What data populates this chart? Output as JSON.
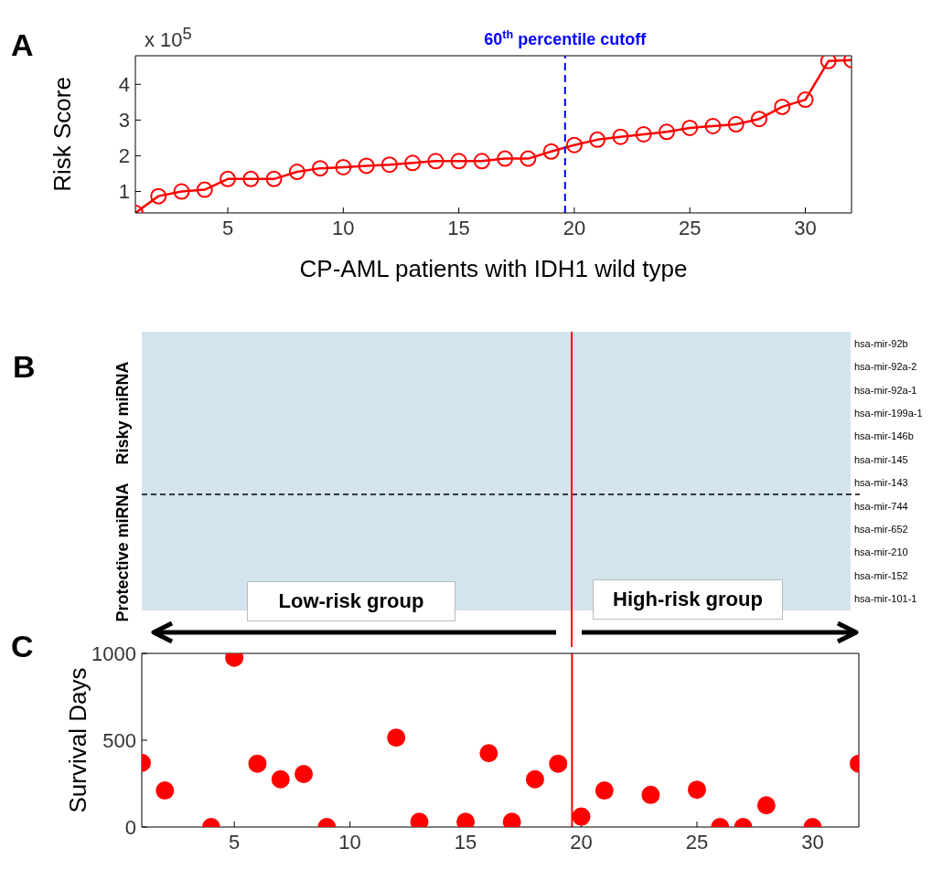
{
  "chart_data": [
    {
      "type": "line",
      "xlabel": "CP-AML patients with IDH1 wild type",
      "ylabel": "Risk Score",
      "annotations": [
        "A",
        "x 10$^{5}$"
      ],
      "x": [
        1,
        2,
        3,
        4,
        5,
        6,
        7,
        8,
        9,
        10,
        11,
        12,
        13,
        14,
        15,
        16,
        17,
        18,
        19,
        20,
        21,
        22,
        23,
        24,
        25,
        26,
        27,
        28,
        29,
        30,
        31,
        32
      ],
      "series": [
        {
          "color": "#ff0000",
          "values": [
            0.4,
            0.87,
            1.0,
            1.05,
            1.35,
            1.35,
            1.35,
            1.55,
            1.65,
            1.68,
            1.72,
            1.75,
            1.8,
            1.85,
            1.85,
            1.85,
            1.92,
            1.92,
            2.12,
            2.3,
            2.45,
            2.53,
            2.6,
            2.67,
            2.78,
            2.83,
            2.88,
            3.03,
            3.37,
            3.57,
            4.65,
            4.68
          ]
        }
      ],
      "xlim": [
        1,
        32
      ],
      "xticks": [
        5,
        10,
        15,
        20,
        25,
        30
      ],
      "ylim": [
        0.4,
        4.8
      ],
      "yticks": [
        1,
        2,
        3,
        4
      ],
      "marker": "circle",
      "ref_lines": [
        {
          "axis": "x",
          "value": 19.6,
          "label": "60$^{th}$ percentile cutoff",
          "color": "#0000ff",
          "line_style": "dashed"
        }
      ]
    },
    {
      "type": "other",
      "annotations": [
        "B",
        "Risky miRNA",
        "Protective miRNA",
        "Low-risk group",
        "High-risk group",
        "hsa-mir-92b",
        "hsa-mir-92a-2",
        "hsa-mir-92a-1",
        "hsa-mir-199a-1",
        "hsa-mir-146b",
        "hsa-mir-145",
        "hsa-mir-143",
        "hsa-mir-744",
        "hsa-mir-652",
        "hsa-mir-210",
        "hsa-mir-152",
        "hsa-mir-101-1"
      ]
    },
    {
      "type": "scatter",
      "ylabel": "Survival Days",
      "annotations": [
        "C"
      ],
      "x": [
        1,
        2,
        4,
        5,
        6,
        7,
        8,
        9,
        12,
        13,
        15,
        16,
        17,
        18,
        19,
        20,
        21,
        23,
        25,
        26,
        27,
        28,
        30,
        32
      ],
      "series": [
        {
          "color": "#ff0000",
          "values": [
            370,
            210,
            0,
            975,
            365,
            275,
            305,
            0,
            515,
            30,
            30,
            425,
            30,
            275,
            365,
            60,
            210,
            185,
            215,
            0,
            0,
            125,
            0,
            365
          ]
        }
      ],
      "xlim": [
        1,
        32
      ],
      "xticks": [
        5,
        10,
        15,
        20,
        25,
        30
      ],
      "ylim": [
        0,
        1000
      ],
      "yticks": [
        0,
        500,
        1000
      ],
      "marker": "circle",
      "ref_lines": [
        {
          "axis": "x",
          "value": 19.6,
          "color": "#ff0000",
          "line_style": "solid"
        }
      ]
    }
  ]
}
